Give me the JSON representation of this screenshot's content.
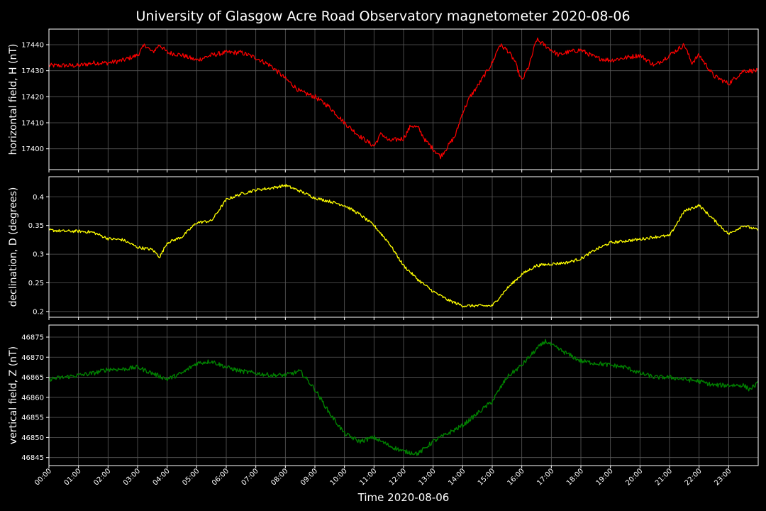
{
  "title": "University of Glasgow Acre Road Observatory magnetometer 2020-08-06",
  "colors": {
    "background": "#000000",
    "text": "#ffffff",
    "grid": "#5a5a5a",
    "h_series": "#ff0000",
    "d_series": "#ffff00",
    "z_series": "#008000"
  },
  "chart_data": [
    {
      "type": "line",
      "title": "University of Glasgow Acre Road Observatory magnetometer 2020-08-06",
      "ylabel": "horizontal field, H (nT)",
      "xlabel": "",
      "ylim": [
        17392,
        17446
      ],
      "yticks": [
        17400,
        17410,
        17420,
        17430,
        17440
      ],
      "xlim": [
        0,
        24
      ],
      "grid": true,
      "series": [
        {
          "color": "#ff0000",
          "x": [
            0,
            0.5,
            1,
            1.5,
            2,
            2.5,
            3,
            3.25,
            3.5,
            3.75,
            4,
            4.5,
            5,
            5.5,
            6,
            6.5,
            7,
            7.5,
            8,
            8.5,
            9,
            9.5,
            10,
            10.5,
            11,
            11.25,
            11.5,
            12,
            12.25,
            12.5,
            12.75,
            13,
            13.25,
            13.5,
            13.75,
            14,
            14.25,
            14.5,
            15,
            15.25,
            15.5,
            15.75,
            16,
            16.25,
            16.5,
            16.75,
            17,
            17.25,
            17.5,
            18,
            18.5,
            19,
            19.5,
            20,
            20.5,
            21,
            21.25,
            21.5,
            21.75,
            22,
            22.5,
            23,
            23.5,
            24
          ],
          "y": [
            17432,
            17432,
            17432,
            17433,
            17433,
            17434,
            17436,
            17440,
            17437,
            17440,
            17437,
            17436,
            17434,
            17436,
            17437,
            17437,
            17435,
            17432,
            17427,
            17422,
            17420,
            17416,
            17410,
            17405,
            17401,
            17406,
            17403,
            17404,
            17409,
            17408,
            17403,
            17400,
            17397,
            17401,
            17405,
            17414,
            17420,
            17424,
            17433,
            17440,
            17438,
            17434,
            17426,
            17432,
            17442,
            17440,
            17438,
            17436,
            17437,
            17438,
            17435,
            17434,
            17435,
            17436,
            17432,
            17436,
            17438,
            17440,
            17433,
            17436,
            17428,
            17425,
            17430,
            17430
          ]
        }
      ]
    },
    {
      "type": "line",
      "ylabel": "declination, D (degrees)",
      "xlabel": "",
      "ylim": [
        0.19,
        0.435
      ],
      "yticks": [
        0.2,
        0.25,
        0.3,
        0.35,
        0.4
      ],
      "xlim": [
        0,
        24
      ],
      "grid": true,
      "series": [
        {
          "color": "#ffff00",
          "x": [
            0,
            0.5,
            1,
            1.5,
            2,
            2.5,
            3,
            3.5,
            3.75,
            4,
            4.5,
            5,
            5.5,
            6,
            6.5,
            7,
            7.5,
            8,
            8.5,
            9,
            9.5,
            10,
            10.5,
            11,
            11.5,
            12,
            12.5,
            13,
            13.5,
            14,
            14.5,
            15,
            15.5,
            16,
            16.5,
            17,
            17.5,
            18,
            18.5,
            19,
            19.5,
            20,
            20.5,
            21,
            21.5,
            21.75,
            22,
            22.5,
            23,
            23.5,
            24
          ],
          "y": [
            0.342,
            0.34,
            0.34,
            0.338,
            0.327,
            0.325,
            0.312,
            0.308,
            0.295,
            0.32,
            0.33,
            0.355,
            0.358,
            0.395,
            0.405,
            0.412,
            0.415,
            0.42,
            0.41,
            0.398,
            0.392,
            0.385,
            0.37,
            0.35,
            0.32,
            0.28,
            0.255,
            0.235,
            0.22,
            0.21,
            0.21,
            0.21,
            0.24,
            0.265,
            0.28,
            0.283,
            0.285,
            0.292,
            0.308,
            0.32,
            0.323,
            0.326,
            0.33,
            0.332,
            0.375,
            0.38,
            0.385,
            0.36,
            0.335,
            0.35,
            0.342
          ]
        }
      ]
    },
    {
      "type": "line",
      "ylabel": "vertical field, Z (nT)",
      "xlabel": "Time 2020-08-06",
      "ylim": [
        46843,
        46878
      ],
      "yticks": [
        46845,
        46850,
        46855,
        46860,
        46865,
        46870,
        46875
      ],
      "xlim": [
        0,
        24
      ],
      "xticks": [
        "00:00",
        "01:00",
        "02:00",
        "03:00",
        "04:00",
        "05:00",
        "06:00",
        "07:00",
        "08:00",
        "09:00",
        "10:00",
        "11:00",
        "12:00",
        "13:00",
        "14:00",
        "15:00",
        "16:00",
        "17:00",
        "18:00",
        "19:00",
        "20:00",
        "21:00",
        "22:00",
        "23:00"
      ],
      "grid": true,
      "series": [
        {
          "color": "#008000",
          "x": [
            0,
            0.5,
            1,
            1.5,
            2,
            2.5,
            3,
            3.5,
            4,
            4.5,
            5,
            5.5,
            6,
            6.5,
            7,
            7.5,
            8,
            8.5,
            9,
            9.5,
            10,
            10.5,
            11,
            11.5,
            12,
            12.5,
            13,
            13.5,
            14,
            14.5,
            15,
            15.5,
            16,
            16.5,
            16.8,
            17,
            17.5,
            18,
            18.5,
            19,
            19.5,
            20,
            20.5,
            21,
            21.5,
            22,
            22.5,
            23,
            23.5,
            23.7,
            24
          ],
          "y": [
            46864.5,
            46865,
            46865.5,
            46866,
            46867,
            46867,
            46867.5,
            46866,
            46864.5,
            46866,
            46868.5,
            46869,
            46867.5,
            46866.5,
            46866,
            46865.5,
            46865.5,
            46866.5,
            46862,
            46856,
            46851,
            46849,
            46850,
            46848,
            46846.5,
            46846,
            46849,
            46851,
            46853,
            46856,
            46859,
            46865,
            46868,
            46872,
            46874,
            46873,
            46871,
            46869,
            46868.5,
            46868,
            46867.5,
            46866,
            46865,
            46865,
            46864.5,
            46864,
            46863,
            46863,
            46863,
            46862,
            46863.5
          ]
        }
      ]
    }
  ]
}
